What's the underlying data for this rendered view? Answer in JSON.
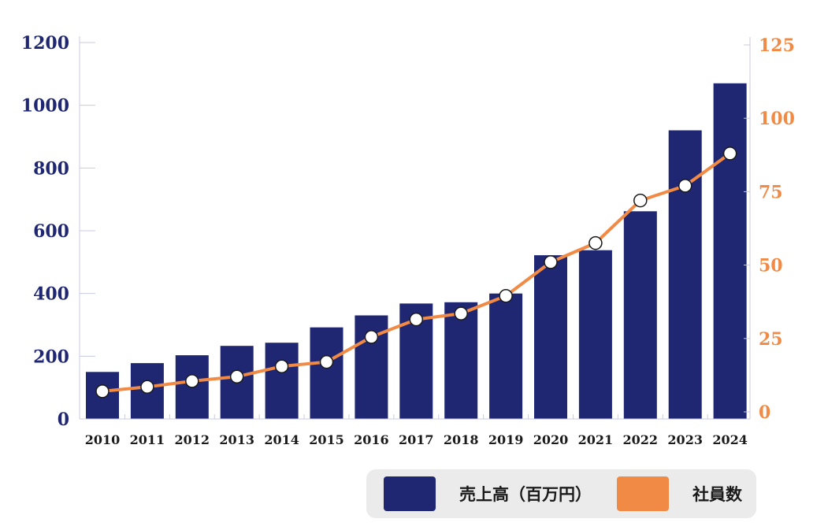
{
  "chart_data": {
    "type": "bar+line",
    "title": "",
    "xlabel": "",
    "categories": [
      "2010",
      "2011",
      "2012",
      "2013",
      "2014",
      "2015",
      "2016",
      "2017",
      "2018",
      "2019",
      "2020",
      "2021",
      "2022",
      "2023",
      "2024"
    ],
    "series": [
      {
        "name": "売上高（百万円）",
        "type": "bar",
        "axis": "left",
        "color": "#1f2672",
        "values": [
          150,
          178,
          203,
          233,
          243,
          292,
          330,
          368,
          372,
          400,
          522,
          538,
          662,
          920,
          1070
        ]
      },
      {
        "name": "社員数",
        "type": "line",
        "axis": "right",
        "color": "#f08a45",
        "values": [
          7,
          8.5,
          10.5,
          12,
          15.5,
          17,
          25.5,
          31.5,
          33.5,
          39.5,
          51,
          57.5,
          72,
          77,
          88
        ]
      }
    ],
    "y_left": {
      "min": 0,
      "max": 1200,
      "ticks": [
        0,
        200,
        400,
        600,
        800,
        1000,
        1200
      ],
      "color": "#1f2672"
    },
    "y_right": {
      "min": 0,
      "max": 125,
      "ticks": [
        0,
        25,
        50,
        75,
        100,
        125
      ],
      "color": "#f08a45"
    },
    "grid": false,
    "legend_position": "bottom-right"
  }
}
